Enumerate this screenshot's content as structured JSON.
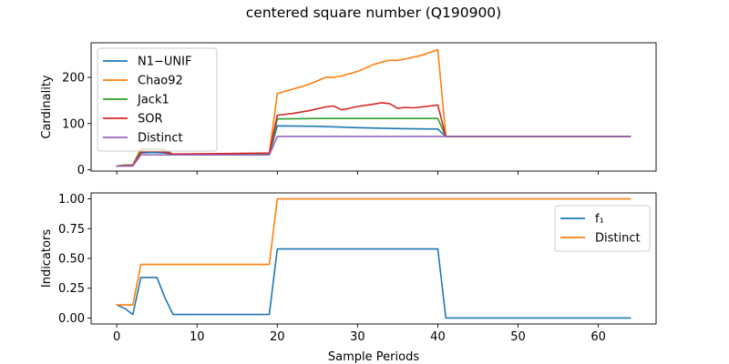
{
  "figure": {
    "suptitle": "centered square number (Q190900)"
  },
  "chart_data": [
    {
      "type": "line",
      "title": "",
      "xlabel": "",
      "ylabel": "Cardinality",
      "xlim": [
        -3.2,
        67.2
      ],
      "ylim": [
        -3,
        275
      ],
      "x_ticks": [
        0,
        10,
        20,
        30,
        40,
        50,
        60
      ],
      "x_tick_labels": [
        "",
        "",
        "",
        "",
        "",
        "",
        ""
      ],
      "y_ticks": [
        0,
        100,
        200
      ],
      "y_tick_labels": [
        "0",
        "100",
        "200"
      ],
      "grid": false,
      "legend_position": "upper-left",
      "series": [
        {
          "name": "N1−UNIF",
          "color": "#1f77b4",
          "points": [
            [
              0,
              8
            ],
            [
              1,
              9
            ],
            [
              2,
              9
            ],
            [
              3,
              36
            ],
            [
              4,
              37
            ],
            [
              5,
              37
            ],
            [
              6,
              36
            ],
            [
              7,
              33
            ],
            [
              8,
              33
            ],
            [
              19,
              33
            ],
            [
              20,
              95
            ],
            [
              25,
              94
            ],
            [
              30,
              91
            ],
            [
              35,
              89
            ],
            [
              40,
              88
            ],
            [
              41,
              72
            ],
            [
              64,
              72
            ]
          ]
        },
        {
          "name": "Chao92",
          "color": "#ff7f0e",
          "points": [
            [
              0,
              8
            ],
            [
              1,
              10
            ],
            [
              2,
              10
            ],
            [
              3,
              45
            ],
            [
              4,
              46
            ],
            [
              5,
              46
            ],
            [
              6,
              44
            ],
            [
              7,
              33
            ],
            [
              8,
              33
            ],
            [
              19,
              35
            ],
            [
              20,
              165
            ],
            [
              21,
              170
            ],
            [
              22,
              175
            ],
            [
              24,
              185
            ],
            [
              26,
              200
            ],
            [
              27,
              200
            ],
            [
              28,
              203
            ],
            [
              30,
              213
            ],
            [
              32,
              228
            ],
            [
              33,
              233
            ],
            [
              34,
              237
            ],
            [
              35,
              237
            ],
            [
              36,
              240
            ],
            [
              38,
              248
            ],
            [
              40,
              260
            ],
            [
              41,
              72
            ],
            [
              64,
              72
            ]
          ]
        },
        {
          "name": "Jack1",
          "color": "#2ca02c",
          "points": [
            [
              0,
              8
            ],
            [
              1,
              10
            ],
            [
              2,
              10
            ],
            [
              3,
              43
            ],
            [
              4,
              45
            ],
            [
              5,
              45
            ],
            [
              6,
              43
            ],
            [
              7,
              33
            ],
            [
              8,
              33
            ],
            [
              19,
              33
            ],
            [
              20,
              110
            ],
            [
              25,
              111
            ],
            [
              30,
              111
            ],
            [
              35,
              111
            ],
            [
              40,
              111
            ],
            [
              41,
              72
            ],
            [
              64,
              72
            ]
          ]
        },
        {
          "name": "SOR",
          "color": "#d62728",
          "points": [
            [
              0,
              8
            ],
            [
              1,
              9
            ],
            [
              2,
              10
            ],
            [
              3,
              38
            ],
            [
              4,
              40
            ],
            [
              5,
              40
            ],
            [
              6,
              38
            ],
            [
              7,
              34
            ],
            [
              8,
              34
            ],
            [
              19,
              36
            ],
            [
              20,
              118
            ],
            [
              22,
              122
            ],
            [
              24,
              128
            ],
            [
              26,
              136
            ],
            [
              27,
              138
            ],
            [
              28,
              130
            ],
            [
              29,
              133
            ],
            [
              30,
              137
            ],
            [
              32,
              142
            ],
            [
              33,
              145
            ],
            [
              34,
              143
            ],
            [
              35,
              133
            ],
            [
              36,
              135
            ],
            [
              37,
              134
            ],
            [
              38,
              136
            ],
            [
              40,
              140
            ],
            [
              41,
              72
            ],
            [
              64,
              72
            ]
          ]
        },
        {
          "name": "Distinct",
          "color": "#9467bd",
          "points": [
            [
              0,
              8
            ],
            [
              1,
              8
            ],
            [
              2,
              8
            ],
            [
              3,
              32
            ],
            [
              19,
              32
            ],
            [
              20,
              72
            ],
            [
              64,
              72
            ]
          ]
        }
      ]
    },
    {
      "type": "line",
      "title": "",
      "xlabel": "Sample Periods",
      "ylabel": "Indicators",
      "xlim": [
        -3.2,
        67.2
      ],
      "ylim": [
        -0.05,
        1.05
      ],
      "x_ticks": [
        0,
        10,
        20,
        30,
        40,
        50,
        60
      ],
      "x_tick_labels": [
        "0",
        "10",
        "20",
        "30",
        "40",
        "50",
        "60"
      ],
      "y_ticks": [
        0,
        0.25,
        0.5,
        0.75,
        1.0
      ],
      "y_tick_labels": [
        "0.00",
        "0.25",
        "0.50",
        "0.75",
        "1.00"
      ],
      "grid": false,
      "legend_position": "upper-right",
      "series": [
        {
          "name": "f₁",
          "color": "#1f77b4",
          "points": [
            [
              0,
              0.11
            ],
            [
              1,
              0.08
            ],
            [
              2,
              0.03
            ],
            [
              3,
              0.34
            ],
            [
              5,
              0.34
            ],
            [
              6,
              0.17
            ],
            [
              7,
              0.03
            ],
            [
              19,
              0.03
            ],
            [
              20,
              0.58
            ],
            [
              40,
              0.58
            ],
            [
              41,
              0.0
            ],
            [
              64,
              0.0
            ]
          ]
        },
        {
          "name": "Distinct",
          "color": "#ff7f0e",
          "points": [
            [
              0,
              0.11
            ],
            [
              2,
              0.11
            ],
            [
              3,
              0.45
            ],
            [
              19,
              0.45
            ],
            [
              20,
              1.0
            ],
            [
              64,
              1.0
            ]
          ]
        }
      ]
    }
  ]
}
